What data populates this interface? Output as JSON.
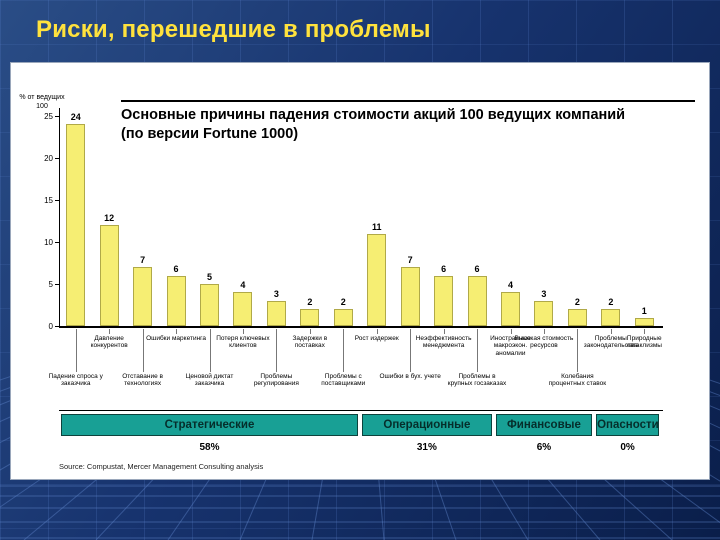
{
  "slide": {
    "title": "Риски, перешедшие в проблемы"
  },
  "colors": {
    "slide_background": "#17336e",
    "slide_title_color": "#ffe23d",
    "panel_background": "#ffffff",
    "bar_fill": "#f6ee73",
    "group_box_fill": "#18a095"
  },
  "chart_data": {
    "type": "bar",
    "title": "Основные причины падения стоимости акций 100 ведущих компаний",
    "subtitle": "(по версии Fortune 1000)",
    "y_axis_label_line1": "% от ведущих",
    "y_axis_label_line2": "100",
    "ylim": [
      0,
      25
    ],
    "yticks": [
      0,
      5,
      10,
      15,
      20,
      25
    ],
    "grid": "off",
    "legend": "none",
    "categories": [
      "Падение спроса у заказчика",
      "Давление конкурентов",
      "Отставание в технологиях",
      "Ошибки маркетинга",
      "Ценовой диктат заказчика",
      "Потеря ключевых клиентов",
      "Проблемы регулирования",
      "Задержки в поставках",
      "Проблемы с поставщиками",
      "Рост издержек",
      "Ошибки в бух. учете",
      "Неэффективность менеджмента",
      "Проблемы в крупных госзаказах",
      "Иностранные макроэкон. аномалии",
      "Высокая стоимость ресурсов",
      "Колебания процентных ставок",
      "Проблемы законодательства",
      "Природные катаклизмы"
    ],
    "values": [
      24,
      12,
      7,
      6,
      5,
      4,
      3,
      2,
      2,
      11,
      7,
      6,
      6,
      4,
      3,
      2,
      2,
      1
    ],
    "label_rows": [
      "bottom",
      "top",
      "bottom",
      "top",
      "bottom",
      "top",
      "bottom",
      "top",
      "bottom",
      "top",
      "bottom",
      "top",
      "bottom",
      "top",
      "top",
      "bottom",
      "top",
      "top"
    ],
    "groups": [
      {
        "label": "Стратегические",
        "percent": "58%",
        "from": 0,
        "to": 8
      },
      {
        "label": "Операционные",
        "percent": "31%",
        "from": 9,
        "to": 12
      },
      {
        "label": "Финансовые",
        "percent": "6%",
        "from": 13,
        "to": 15
      },
      {
        "label": "Опасности",
        "percent": "0%",
        "from": 16,
        "to": 17
      }
    ],
    "source": "Source: Compustat, Mercer Management Consulting analysis"
  }
}
